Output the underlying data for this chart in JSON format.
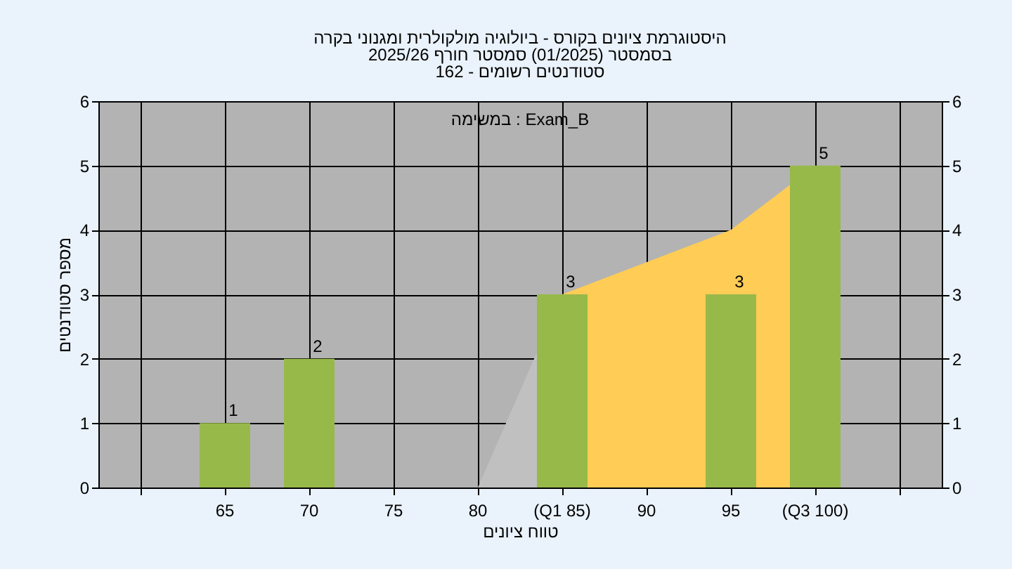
{
  "chart_data": {
    "type": "bar",
    "title": "היסטוגרמת ציונים בקורס - ביולוגיה מולקולרית ומגנוני בקרה\nבסמסטר  (01/2025)  סמסטר חורף 2025/26",
    "subtitle": "סטודנטים רשומים - 162",
    "xlabel": "טווח ציונים",
    "ylabel": "מספר סטודנטים",
    "annotations": [
      "במשימה : Exam_B"
    ],
    "categories": [
      null,
      "65",
      "70",
      "75",
      "80",
      "(Q1 85)",
      "90",
      "95",
      "(Q3 100)",
      null
    ],
    "series": [
      {
        "type": "area",
        "color": "#c0c0c0",
        "values": [
          null,
          null,
          null,
          null,
          0,
          3,
          null,
          null,
          null,
          null
        ]
      },
      {
        "type": "area",
        "color": "#ffcc55",
        "values": [
          null,
          null,
          null,
          null,
          null,
          3,
          3.5,
          4,
          5,
          null
        ]
      },
      {
        "color": "#97b94a",
        "values": [
          null,
          1,
          2,
          0,
          0,
          3,
          0,
          3,
          5,
          null
        ],
        "value_labels": [
          null,
          "1",
          "2",
          null,
          null,
          "3",
          null,
          "3",
          "5",
          null
        ]
      }
    ],
    "ylim": [
      0,
      6
    ],
    "yticks": [
      0,
      1,
      2,
      3,
      4,
      5,
      6
    ],
    "y2lim": [
      0,
      6
    ],
    "y2ticks": [
      0,
      1,
      2,
      3,
      4,
      5,
      6
    ],
    "grid": true,
    "legend": false
  }
}
